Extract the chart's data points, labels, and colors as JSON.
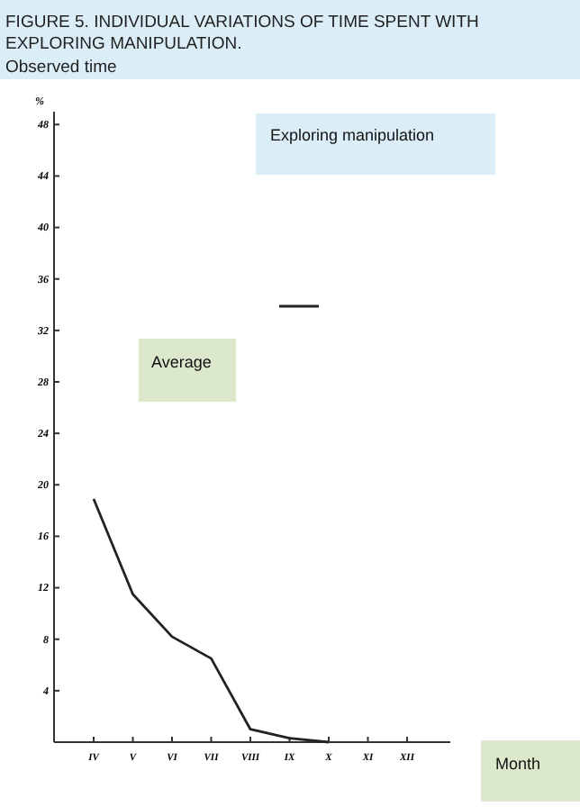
{
  "chart_data": {
    "type": "line",
    "title": "FIGURE 5. INDIVIDUAL VARIATIONS OF TIME SPENT WITH EXPLORING MANIPULATION.",
    "subtitle": "Observed time",
    "xlabel": "Month",
    "ylabel": "%",
    "annotations": [
      "Exploring manipulation"
    ],
    "categories": [
      "IV",
      "V",
      "VI",
      "VII",
      "VIII",
      "IX",
      "X",
      "XI",
      "XII"
    ],
    "series": [
      {
        "name": "Average",
        "color": "#222222",
        "values": [
          18.9,
          11.5,
          8.2,
          6.5,
          1,
          0.3,
          0,
          null,
          null
        ]
      }
    ],
    "ylim": [
      0,
      49
    ],
    "yticks": [
      4,
      8,
      12,
      16,
      20,
      24,
      28,
      32,
      36,
      40,
      44,
      48
    ],
    "grid": false,
    "legend": "left",
    "marker": "none",
    "line_style": "solid"
  }
}
